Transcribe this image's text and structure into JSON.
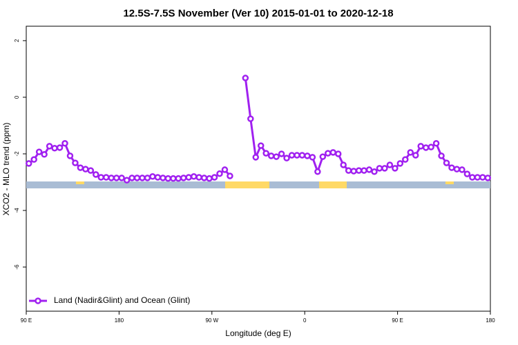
{
  "chart_data": {
    "type": "line",
    "title": "12.5S-7.5S November (Ver 10)   2015-01-01 to 2020-12-18",
    "x_label": "Longitude (deg E)",
    "y_label": "XCO2 - MLO trend (ppm)",
    "xlim": [
      90,
      540
    ],
    "ylim": [
      -7.56,
      2.51
    ],
    "xticks": [
      {
        "value": 90,
        "label": "90 E"
      },
      180,
      {
        "value": 270,
        "label": "90 W"
      },
      {
        "value": 360,
        "label": "0"
      },
      {
        "value": 450,
        "label": "90 E"
      },
      {
        "value": 540,
        "label": "180"
      }
    ],
    "yticks": [
      -6,
      -4,
      -2,
      0,
      2
    ],
    "legend": "bottom-left",
    "x": [
      92.5,
      97.5,
      102.5,
      107.5,
      112.5,
      117.5,
      122.5,
      127.5,
      132.5,
      137.5,
      142.5,
      147.5,
      152.5,
      157.5,
      162.5,
      167.5,
      172.5,
      177.5,
      182.5,
      187.5,
      192.5,
      197.5,
      202.5,
      207.5,
      212.5,
      217.5,
      222.5,
      227.5,
      232.5,
      237.5,
      242.5,
      247.5,
      252.5,
      257.5,
      262.5,
      267.5,
      272.5,
      277.5,
      282.5,
      287.5,
      292.5,
      297.5,
      302.5,
      307.5,
      312.5,
      317.5,
      322.5,
      327.5,
      332.5,
      337.5,
      342.5,
      347.5,
      352.5,
      357.5,
      362.5,
      367.5,
      372.5,
      377.5,
      382.5,
      387.5,
      392.5,
      397.5,
      402.5,
      407.5,
      412.5,
      417.5,
      422.5,
      427.5,
      432.5,
      437.5,
      442.5,
      447.5,
      452.5,
      457.5,
      462.5,
      467.5,
      472.5,
      477.5,
      482.5,
      487.5,
      492.5,
      497.5,
      502.5,
      507.5,
      512.5,
      517.5,
      522.5,
      527.5,
      532.5,
      537.5
    ],
    "series": [
      {
        "name": "Land (Nadir&Glint) and Ocean (Glint)",
        "color": "#a020f0",
        "values": [
          -2.34,
          -2.2,
          -1.93,
          -2.02,
          -1.73,
          -1.8,
          -1.78,
          -1.63,
          -2.07,
          -2.32,
          -2.49,
          -2.54,
          -2.59,
          -2.73,
          -2.83,
          -2.83,
          -2.85,
          -2.85,
          -2.85,
          -2.93,
          -2.85,
          -2.85,
          -2.85,
          -2.85,
          -2.8,
          -2.83,
          -2.85,
          -2.87,
          -2.87,
          -2.87,
          -2.85,
          -2.83,
          -2.8,
          -2.83,
          -2.85,
          -2.87,
          -2.83,
          -2.7,
          -2.56,
          -2.78,
          null,
          null,
          0.68,
          -0.76,
          -2.12,
          -1.71,
          -1.98,
          -2.07,
          -2.1,
          -2.0,
          -2.15,
          -2.05,
          -2.05,
          -2.05,
          -2.07,
          -2.12,
          -2.63,
          -2.1,
          -1.98,
          -1.95,
          -2.0,
          -2.39,
          -2.59,
          -2.61,
          -2.59,
          -2.59,
          -2.56,
          -2.63,
          -2.51,
          -2.51,
          -2.39,
          -2.51,
          -2.34,
          -2.2,
          -1.95,
          -2.05,
          -1.73,
          -1.78,
          -1.76,
          -1.63,
          -2.07,
          -2.32,
          -2.49,
          -2.54,
          -2.56,
          -2.71,
          -2.83,
          -2.83,
          -2.83,
          -2.85
        ]
      }
    ]
  }
}
